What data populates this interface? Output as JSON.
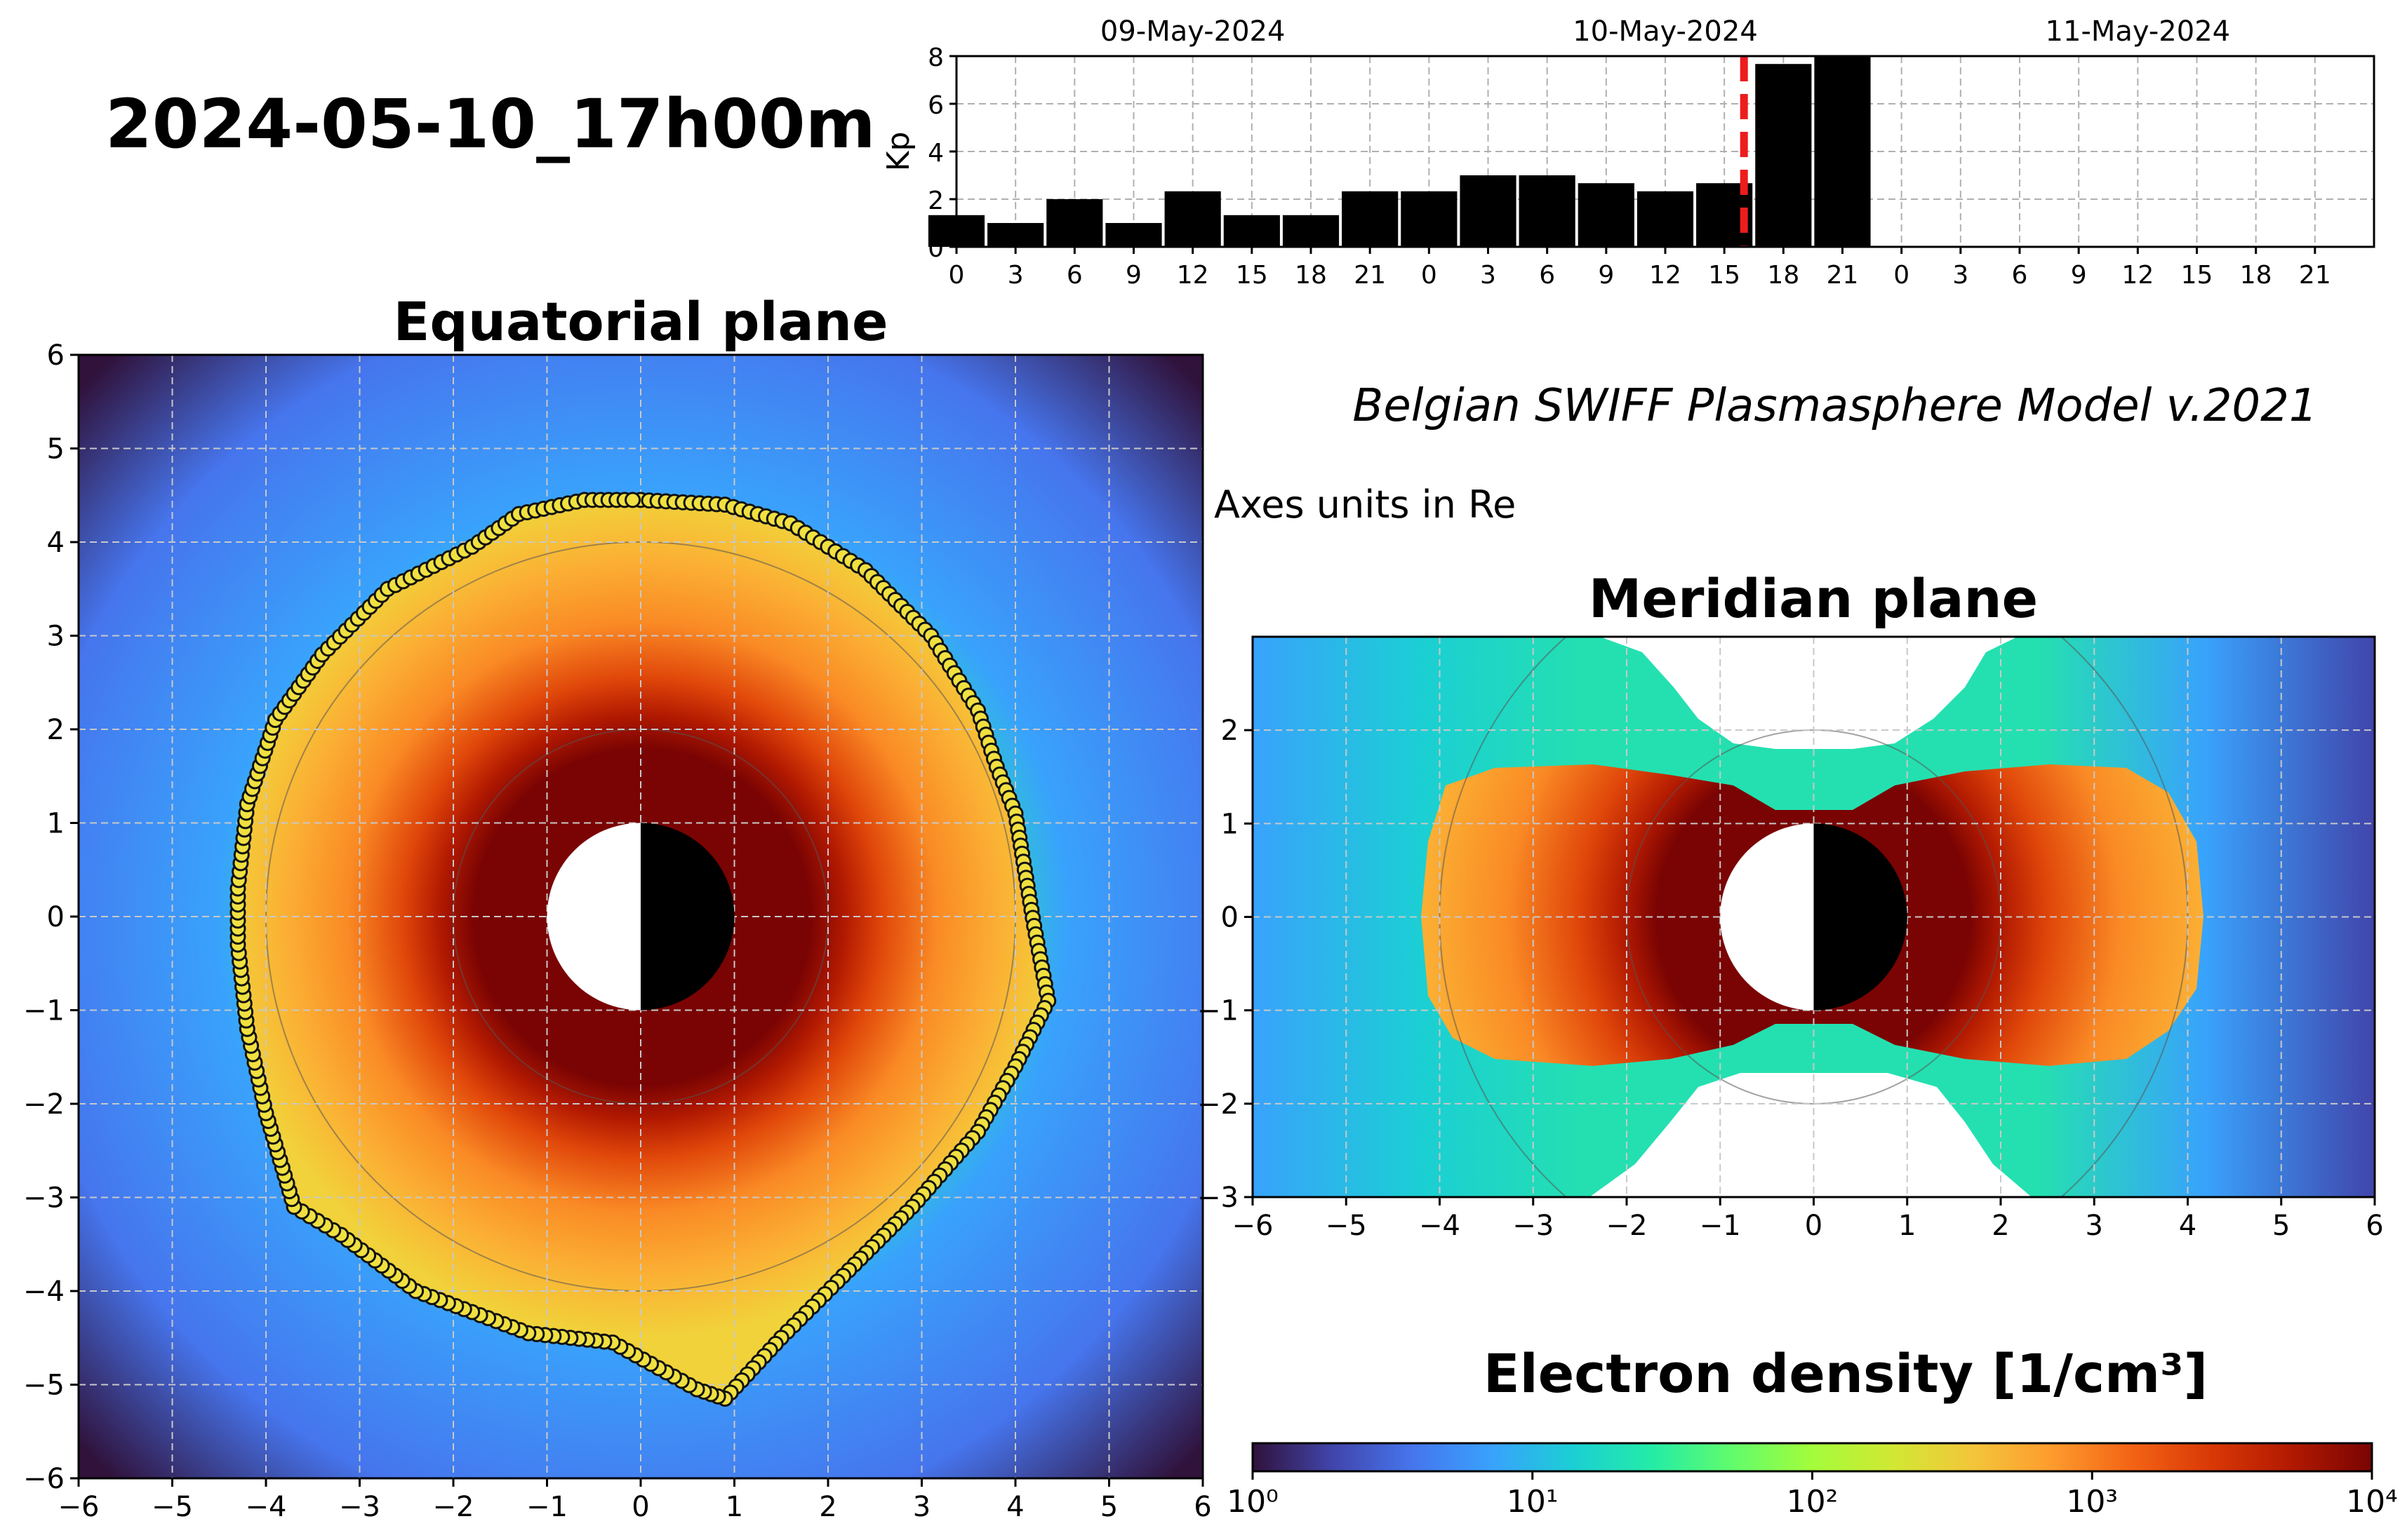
{
  "header": {
    "timestamp": "2024-05-10_17h00m",
    "model_name": "Belgian SWIFF Plasmasphere Model v.2021",
    "units_note": "Axes units in Re"
  },
  "colors": {
    "kp_bar": "#000000",
    "current_time_marker": "#ee1c1c",
    "boundary_point_fill": "#f0e040",
    "boundary_point_stroke": "#111111",
    "day_side": "#ffffff",
    "night_side": "#000000"
  },
  "chart_data": [
    {
      "id": "kp",
      "type": "bar",
      "title": "",
      "ylabel": "Kp",
      "xlabel": "",
      "ylim": [
        0,
        8
      ],
      "yticks": [
        0,
        2,
        4,
        6,
        8
      ],
      "date_labels": [
        {
          "label": "09-May-2024",
          "hour_offset": 12
        },
        {
          "label": "10-May-2024",
          "hour_offset": 36
        },
        {
          "label": "11-May-2024",
          "hour_offset": 60
        }
      ],
      "xtick_labels": [
        "0",
        "3",
        "6",
        "9",
        "12",
        "15",
        "18",
        "21",
        "0",
        "3",
        "6",
        "9",
        "12",
        "15",
        "18",
        "21",
        "0",
        "3",
        "6",
        "9",
        "12",
        "15",
        "18",
        "21"
      ],
      "xlim_hours": [
        0,
        72
      ],
      "bar_width_hours": 3,
      "bar_start_hours": [
        -1.5,
        1.5,
        4.5,
        7.5,
        10.5,
        13.5,
        16.5,
        19.5,
        22.5,
        25.5,
        28.5,
        31.5,
        34.5,
        37.5,
        40.5,
        43.5
      ],
      "values": [
        1.33,
        1.0,
        2.0,
        1.0,
        2.33,
        1.33,
        1.33,
        2.33,
        2.33,
        3.0,
        3.0,
        2.67,
        2.33,
        2.67,
        7.67,
        8.0
      ],
      "current_time_hours": 40.0,
      "grid": true
    },
    {
      "id": "equatorial",
      "type": "heatmap",
      "title": "Equatorial plane",
      "xlim": [
        -6,
        6
      ],
      "ylim": [
        -6,
        6
      ],
      "xticks": [
        -6,
        -5,
        -4,
        -3,
        -2,
        -1,
        0,
        1,
        2,
        3,
        4,
        5,
        6
      ],
      "yticks": [
        -6,
        -5,
        -4,
        -3,
        -2,
        -1,
        0,
        1,
        2,
        3,
        4,
        5,
        6
      ],
      "reference_circles_re": [
        2,
        4
      ],
      "earth_radius_re": 1,
      "plasmapause": [
        [
          0.0,
          4.45
        ],
        [
          0.9,
          4.4
        ],
        [
          1.6,
          4.2
        ],
        [
          2.4,
          3.7
        ],
        [
          3.1,
          3.0
        ],
        [
          3.6,
          2.2
        ],
        [
          3.8,
          1.6
        ],
        [
          4.0,
          1.1
        ],
        [
          4.1,
          0.5
        ],
        [
          4.2,
          -0.1
        ],
        [
          4.35,
          -0.9
        ],
        [
          4.0,
          -1.6
        ],
        [
          3.6,
          -2.3
        ],
        [
          2.9,
          -3.1
        ],
        [
          2.1,
          -3.9
        ],
        [
          1.5,
          -4.5
        ],
        [
          0.9,
          -5.15
        ],
        [
          0.6,
          -5.05
        ],
        [
          -0.3,
          -4.55
        ],
        [
          -1.2,
          -4.45
        ],
        [
          -2.4,
          -4.0
        ],
        [
          -3.2,
          -3.4
        ],
        [
          -3.7,
          -3.1
        ],
        [
          -4.0,
          -2.1
        ],
        [
          -4.2,
          -1.2
        ],
        [
          -4.3,
          -0.3
        ],
        [
          -4.3,
          0.3
        ],
        [
          -4.2,
          1.2
        ],
        [
          -3.9,
          2.1
        ],
        [
          -3.4,
          2.8
        ],
        [
          -2.7,
          3.5
        ],
        [
          -1.8,
          3.95
        ],
        [
          -1.3,
          4.3
        ],
        [
          -0.6,
          4.45
        ],
        [
          0.0,
          4.45
        ]
      ]
    },
    {
      "id": "meridian",
      "type": "heatmap",
      "title": "Meridian plane",
      "xlim": [
        -6,
        6
      ],
      "ylim": [
        -3,
        3
      ],
      "xticks": [
        -6,
        -5,
        -4,
        -3,
        -2,
        -1,
        0,
        1,
        2,
        3,
        4,
        5,
        6
      ],
      "yticks": [
        -3,
        -2,
        -1,
        0,
        1,
        2
      ],
      "plasmasphere_extent_re": 4.1,
      "reference_circles_re": [
        2,
        4
      ],
      "earth_radius_re": 1
    },
    {
      "id": "colorbar",
      "type": "heatmap",
      "title": "Electron density [1/cm³]",
      "scale": "log",
      "range": [
        1,
        10000
      ],
      "tick_labels": [
        "10⁰",
        "10¹",
        "10²",
        "10³",
        "10⁴"
      ],
      "colormap_stops": [
        "#30123b",
        "#4145ab",
        "#4675ed",
        "#39a2fc",
        "#1bcfd4",
        "#24eca6",
        "#61fc6c",
        "#a4fc3b",
        "#d1e834",
        "#f3c63a",
        "#fe9b2d",
        "#f36315",
        "#d93806",
        "#b11901",
        "#7a0403"
      ]
    }
  ]
}
